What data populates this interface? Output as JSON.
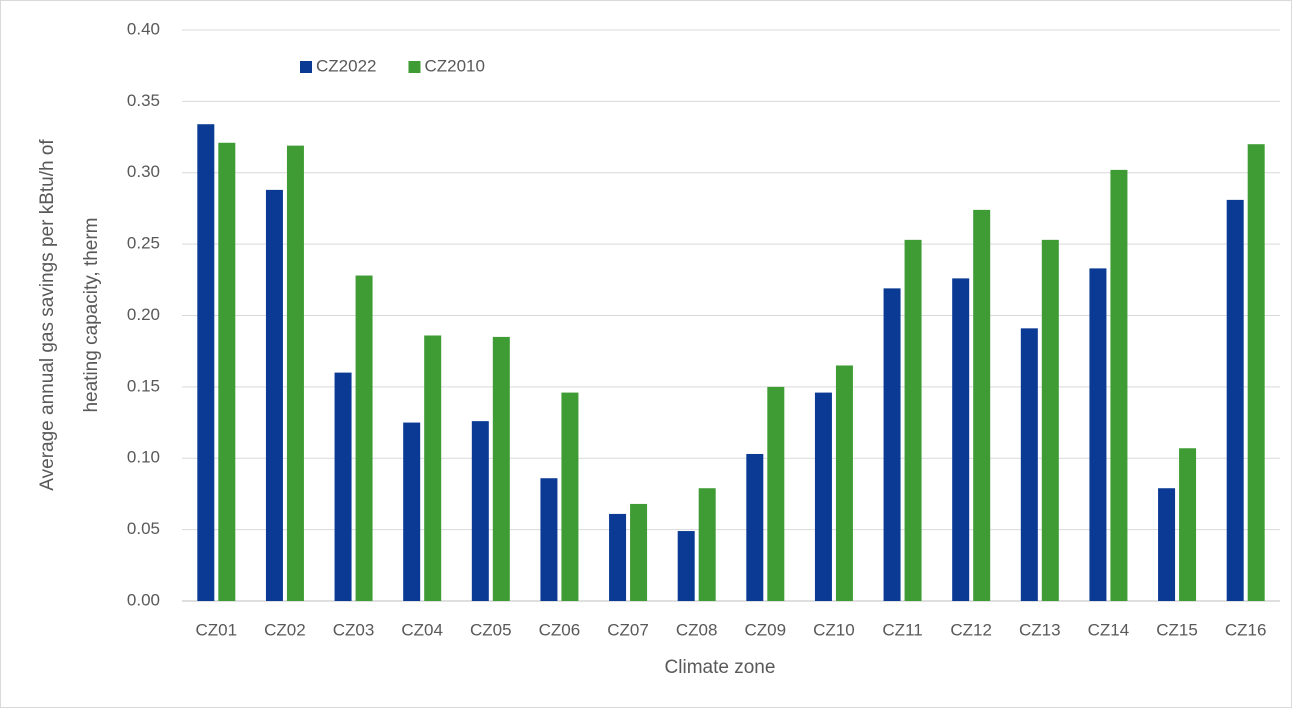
{
  "chart_data": {
    "type": "bar",
    "ylabel": [
      "Average annual gas savings per kBtu/h of",
      "heating capacity, therm"
    ],
    "xlabel": "Climate zone",
    "categories": [
      "CZ01",
      "CZ02",
      "CZ03",
      "CZ04",
      "CZ05",
      "CZ06",
      "CZ07",
      "CZ08",
      "CZ09",
      "CZ10",
      "CZ11",
      "CZ12",
      "CZ13",
      "CZ14",
      "CZ15",
      "CZ16"
    ],
    "series": [
      {
        "name": "CZ2022",
        "color": "#0a3a94",
        "values": [
          0.334,
          0.288,
          0.16,
          0.125,
          0.126,
          0.086,
          0.061,
          0.049,
          0.103,
          0.146,
          0.219,
          0.226,
          0.191,
          0.233,
          0.079,
          0.281
        ]
      },
      {
        "name": "CZ2010",
        "color": "#3f9c35",
        "values": [
          0.321,
          0.319,
          0.228,
          0.186,
          0.185,
          0.146,
          0.068,
          0.079,
          0.15,
          0.165,
          0.253,
          0.274,
          0.253,
          0.302,
          0.107,
          0.32
        ]
      }
    ],
    "ylim": [
      0,
      0.4
    ],
    "yticks": [
      {
        "value": 0,
        "label": "0.00"
      },
      {
        "value": 0.05,
        "label": "0.05"
      },
      {
        "value": 0.1,
        "label": "0.10"
      },
      {
        "value": 0.15,
        "label": "0.15"
      },
      {
        "value": 0.2,
        "label": "0.20"
      },
      {
        "value": 0.25,
        "label": "0.25"
      },
      {
        "value": 0.3,
        "label": "0.30"
      },
      {
        "value": 0.35,
        "label": "0.35"
      },
      {
        "value": 0.4,
        "label": "0.40"
      }
    ],
    "grid": true,
    "legend": "top-left"
  }
}
